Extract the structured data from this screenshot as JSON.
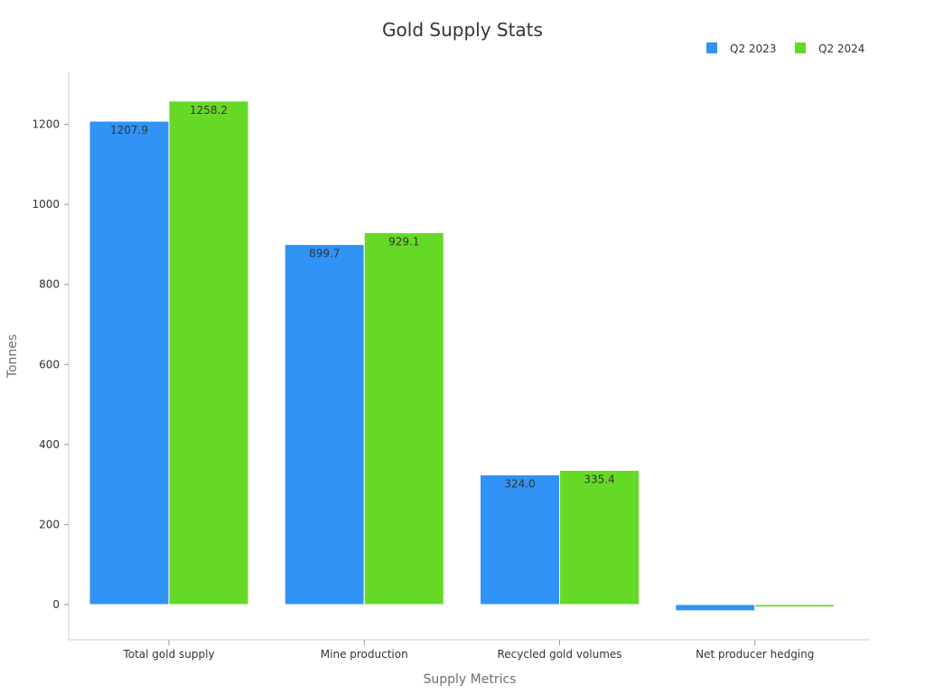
{
  "chart_data": {
    "type": "bar",
    "title": "Gold Supply Stats",
    "xlabel": "Supply Metrics",
    "ylabel": "Tonnes",
    "categories": [
      "Total gold supply",
      "Mine production",
      "Recycled gold volumes",
      "Net producer hedging"
    ],
    "series": [
      {
        "name": "Q2 2023",
        "color": "#3093f5",
        "values": [
          1207.9,
          899.7,
          324.0,
          -15.5
        ]
      },
      {
        "name": "Q2 2024",
        "color": "#66d926",
        "values": [
          1258.2,
          929.1,
          335.4,
          -6.0
        ]
      }
    ],
    "value_labels": [
      [
        "1207.9",
        "899.7",
        "324.0",
        ""
      ],
      [
        "1258.2",
        "929.1",
        "335.4",
        ""
      ]
    ],
    "ylim": [
      -88,
      1330
    ],
    "yticks": [
      0,
      200,
      400,
      600,
      800,
      1000,
      1200
    ],
    "grid": false,
    "legend_position": "top-right"
  }
}
